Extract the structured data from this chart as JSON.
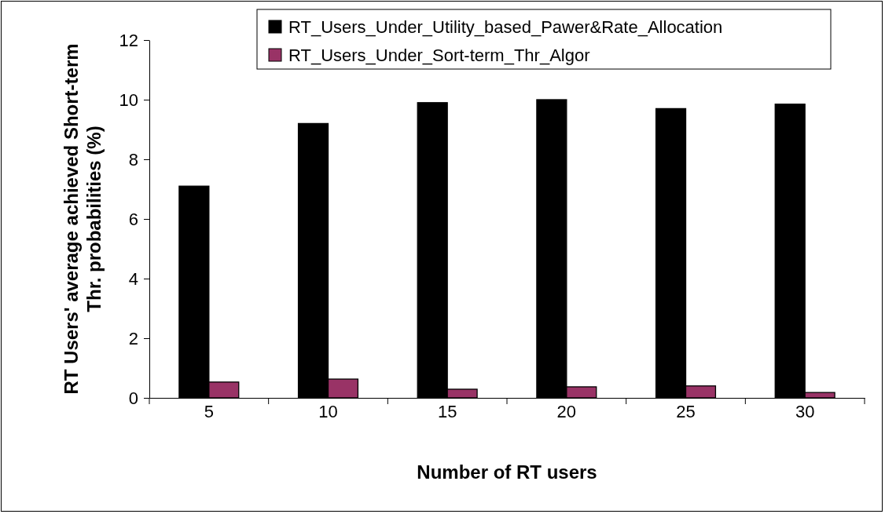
{
  "chart_data": {
    "type": "bar",
    "xlabel": "Number of RT users",
    "ylabel": "RT Users' average achieved Short-term Thr. probabilities (%)",
    "categories": [
      "5",
      "10",
      "15",
      "20",
      "25",
      "30"
    ],
    "series": [
      {
        "name": "RT_Users_Under_Utility_based_Pawer&Rate_Allocation",
        "color": "#000000",
        "values": [
          7.1,
          9.2,
          9.9,
          10.0,
          9.7,
          9.85
        ]
      },
      {
        "name": "RT_Users_Under_Sort-term_Thr_Algor",
        "color": "#993366",
        "values": [
          0.53,
          0.63,
          0.29,
          0.37,
          0.4,
          0.18
        ]
      }
    ],
    "ylim": [
      0,
      12
    ],
    "yticks": [
      0,
      2,
      4,
      6,
      8,
      10,
      12
    ],
    "grid": false,
    "legend": "top right"
  }
}
